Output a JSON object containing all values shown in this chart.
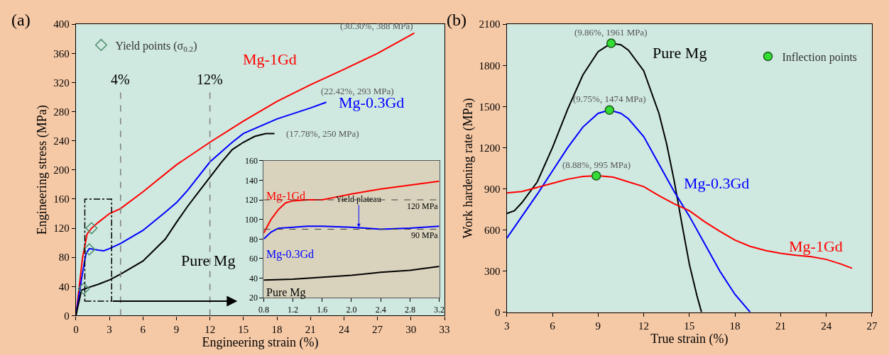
{
  "chart_data": [
    {
      "type": "line",
      "xlabel": "Engineering strain (%)",
      "ylabel": "Engineering stress (MPa)",
      "xlim": [
        0,
        33
      ],
      "ylim": [
        0,
        400
      ],
      "xticks": [
        0,
        3,
        6,
        9,
        12,
        15,
        18,
        21,
        24,
        27,
        30,
        33
      ],
      "yticks": [
        0,
        40,
        80,
        120,
        160,
        200,
        240,
        280,
        320,
        360,
        400
      ],
      "legend": "top left",
      "series": [
        {
          "name": "Mg-1Gd",
          "color": "#ff0000",
          "x": [
            0,
            0.3,
            0.6,
            1.0,
            1.4,
            2,
            3,
            4,
            6,
            9,
            12,
            15,
            18,
            21,
            24,
            27,
            30.3
          ],
          "values": [
            0,
            40,
            80,
            112,
            120,
            128,
            140,
            147,
            170,
            207,
            238,
            267,
            294,
            317,
            338,
            360,
            388
          ]
        },
        {
          "name": "Mg-0.3Gd",
          "color": "#0000ff",
          "x": [
            0,
            0.5,
            0.9,
            1.2,
            2,
            2.5,
            3,
            4,
            6,
            8,
            9,
            10,
            12,
            14,
            15,
            18,
            21,
            22.42
          ],
          "values": [
            0,
            50,
            85,
            92,
            90,
            89,
            92,
            99,
            117,
            142,
            155,
            172,
            211,
            238,
            250,
            270,
            285,
            293
          ]
        },
        {
          "name": "Pure Mg",
          "color": "#000000",
          "x": [
            0,
            0.5,
            1,
            2,
            3,
            4,
            6,
            8,
            9,
            10,
            11,
            12,
            13,
            14,
            15,
            16,
            17,
            17.78
          ],
          "values": [
            0,
            35,
            38,
            43,
            49,
            57,
            75,
            105,
            128,
            150,
            170,
            190,
            210,
            228,
            238,
            246,
            250,
            250
          ]
        },
        {
          "name": "Yield points (σ$_{0.2}$)",
          "type": "scatter",
          "marker": "diamond",
          "color": "#4f8f6f",
          "x": [
            1.4,
            1.2,
            0.7
          ],
          "values": [
            120,
            91,
            37
          ]
        }
      ],
      "ref_lines": [
        {
          "axis": "x",
          "value": 4,
          "label": "4%",
          "line_style": "dashed",
          "color": "#808080"
        },
        {
          "axis": "x",
          "value": 12,
          "label": "12%",
          "line_style": "dashed",
          "color": "#808080"
        }
      ],
      "annotations": [
        "(a)",
        {
          "text": "(30.30%, 388 MPa)",
          "x": 30.3,
          "y": 388
        },
        {
          "text": "(22.42%, 293 MPa)",
          "x": 22.42,
          "y": 293
        },
        {
          "text": "(17.78%, 250 MPa)",
          "x": 17.78,
          "y": 250
        }
      ]
    },
    {
      "type": "line",
      "xlim": [
        0.8,
        3.2
      ],
      "ylim": [
        20,
        160
      ],
      "xticks": [
        0.8,
        1.2,
        1.6,
        {
          "value": 2,
          "label": "2.0"
        },
        2.4,
        2.8,
        3.2
      ],
      "yticks": [
        20,
        40,
        60,
        80,
        100,
        120,
        140,
        160
      ],
      "series": [
        {
          "name": "Mg-1Gd",
          "color": "#ff0000",
          "x": [
            0.8,
            0.9,
            1.0,
            1.1,
            1.2,
            1.4,
            1.6,
            1.8,
            2.0,
            2.4,
            2.8,
            3.2
          ],
          "values": [
            86,
            100,
            110,
            117,
            119,
            120,
            120,
            123,
            126,
            131,
            135,
            139
          ]
        },
        {
          "name": "Mg-0.3Gd",
          "color": "#0000ff",
          "x": [
            0.8,
            0.9,
            1.0,
            1.2,
            1.4,
            1.6,
            2.0,
            2.4,
            2.8,
            3.2
          ],
          "values": [
            80,
            87,
            91,
            92,
            93,
            93,
            92,
            90,
            91,
            93
          ]
        },
        {
          "name": "Pure Mg",
          "color": "#000000",
          "x": [
            0.8,
            1.2,
            1.6,
            2.0,
            2.4,
            2.8,
            3.2
          ],
          "values": [
            38,
            39,
            41,
            43,
            46,
            48,
            52
          ]
        }
      ],
      "ref_lines": [
        {
          "axis": "y",
          "value": 120,
          "label": "120 MPa",
          "line_style": "dashed",
          "color": "#404040"
        },
        {
          "axis": "y",
          "value": 90,
          "label": "90 MPa",
          "line_style": "dashed",
          "color": "#404040"
        }
      ],
      "annotations": [
        {
          "text": "Yield plateau",
          "x": 2.1,
          "y": 92
        }
      ]
    },
    {
      "type": "line",
      "xlabel": "True strain (%)",
      "ylabel": "Work hardening rate (MPa)",
      "xlim": [
        3,
        27
      ],
      "ylim": [
        0,
        2100
      ],
      "xticks": [
        3,
        6,
        9,
        12,
        15,
        18,
        21,
        24,
        27
      ],
      "yticks": [
        0,
        300,
        600,
        900,
        1200,
        1500,
        1800,
        2100
      ],
      "legend": "top right",
      "series": [
        {
          "name": "Pure Mg",
          "color": "#000000",
          "x": [
            3,
            3.5,
            4,
            5,
            6,
            7,
            8,
            9,
            9.86,
            10.5,
            11,
            12,
            13,
            13.5,
            14,
            14.5,
            15,
            15.5,
            15.8
          ],
          "values": [
            720,
            740,
            800,
            950,
            1200,
            1480,
            1730,
            1900,
            1961,
            1950,
            1910,
            1760,
            1450,
            1230,
            960,
            650,
            350,
            120,
            0
          ]
        },
        {
          "name": "Mg-0.3Gd",
          "color": "#0000ff",
          "x": [
            3,
            4,
            5,
            6,
            7,
            8,
            9,
            9.75,
            10.5,
            11,
            12,
            13,
            14,
            15,
            16,
            17,
            18,
            19
          ],
          "values": [
            540,
            700,
            860,
            1030,
            1200,
            1350,
            1450,
            1474,
            1450,
            1410,
            1280,
            1080,
            880,
            700,
            500,
            300,
            130,
            0
          ]
        },
        {
          "name": "Mg-1Gd",
          "color": "#ff0000",
          "x": [
            3,
            4,
            5,
            6,
            7,
            8,
            9,
            10,
            11,
            12,
            13,
            14,
            15,
            16,
            17,
            18,
            19,
            20,
            21,
            22,
            23,
            24,
            25,
            25.7
          ],
          "values": [
            870,
            880,
            910,
            940,
            970,
            990,
            995,
            985,
            950,
            916,
            850,
            790,
            740,
            660,
            590,
            526,
            480,
            450,
            430,
            415,
            405,
            385,
            350,
            320
          ]
        },
        {
          "name": "Inflection points",
          "type": "scatter",
          "marker": "circle",
          "color": "#33dd33",
          "x": [
            9.86,
            9.75,
            8.88
          ],
          "values": [
            1961,
            1474,
            995
          ]
        }
      ],
      "annotations": [
        "(b)",
        {
          "text": "(9.86%, 1961 MPa)",
          "x": 9.86,
          "y": 1961
        },
        {
          "text": "(9.75%, 1474 MPa)",
          "x": 9.75,
          "y": 1474
        },
        {
          "text": "(8.88%, 995 MPa)",
          "x": 8.88,
          "y": 995
        }
      ]
    }
  ]
}
